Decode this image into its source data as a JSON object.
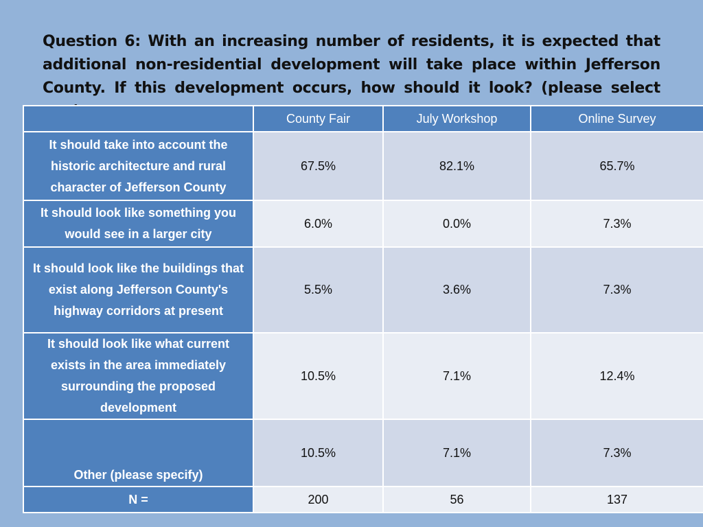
{
  "question": "Question 6: With an increasing number of residents, it is expected that additional non-residential development will take place within Jefferson County. If this development occurs, how should it look? (please select one)",
  "table": {
    "corner": "",
    "columns": [
      "County Fair",
      "July Workshop",
      "Online Survey"
    ],
    "rows": [
      {
        "label": "It should take into account the historic architecture and rural character of Jefferson County",
        "values": [
          "67.5%",
          "82.1%",
          "65.7%"
        ]
      },
      {
        "label": "It should look like something you would see in a larger city",
        "values": [
          "6.0%",
          "0.0%",
          "7.3%"
        ]
      },
      {
        "label": "It should look like the buildings that exist along Jefferson County's highway corridors at present",
        "values": [
          "5.5%",
          "3.6%",
          "7.3%"
        ]
      },
      {
        "label": "It should look like what current exists in the area immediately surrounding the proposed development",
        "values": [
          "10.5%",
          "7.1%",
          "12.4%"
        ]
      },
      {
        "label": "Other (please specify)",
        "values": [
          "10.5%",
          "7.1%",
          "7.3%"
        ]
      },
      {
        "label": "N =",
        "values": [
          "200",
          "56",
          "137"
        ]
      }
    ]
  },
  "colors": {
    "background": "#93b3d9",
    "header": "#4f81bd",
    "row_band_dark": "#d0d8e8",
    "row_band_light": "#e9edf4"
  }
}
